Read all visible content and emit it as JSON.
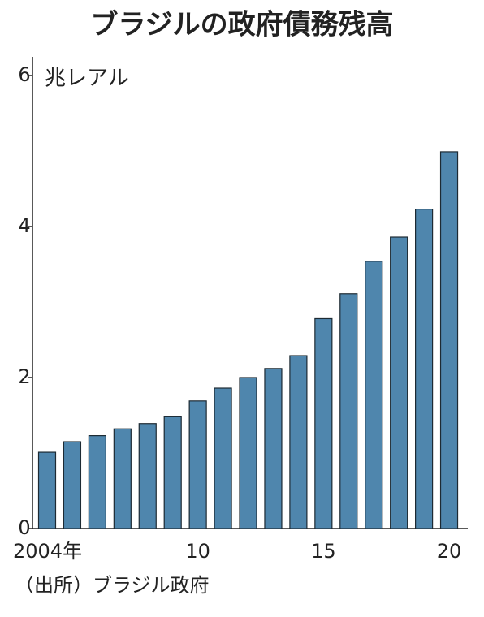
{
  "chart_data": {
    "type": "bar",
    "title": "ブラジルの政府債務残高",
    "unit_label": "兆レアル",
    "source": "（出所）ブラジル政府",
    "categories": [
      "2004年",
      null,
      null,
      null,
      null,
      null,
      "10",
      null,
      null,
      null,
      null,
      "15",
      null,
      null,
      null,
      null,
      "20"
    ],
    "values": [
      1.01,
      1.15,
      1.23,
      1.32,
      1.39,
      1.48,
      1.69,
      1.86,
      2.0,
      2.12,
      2.29,
      2.78,
      3.11,
      3.54,
      3.86,
      4.23,
      4.99
    ],
    "color": "#4f86ad",
    "ylim": [
      0,
      6
    ],
    "yticks": [
      0,
      2,
      4,
      6
    ],
    "grid": false
  }
}
